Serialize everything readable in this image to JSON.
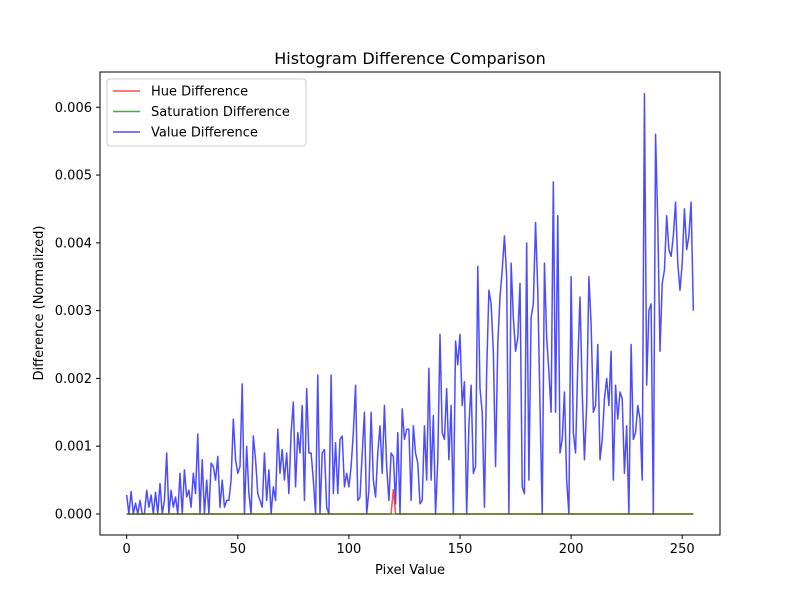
{
  "chart_data": {
    "type": "line",
    "title": "Histogram Difference Comparison",
    "xlabel": "Pixel Value",
    "ylabel": "Difference (Normalized)",
    "xlim": [
      -12,
      267
    ],
    "ylim": [
      -0.00031,
      0.00652
    ],
    "xticks": [
      0,
      50,
      100,
      150,
      200,
      250
    ],
    "xtick_labels": [
      "0",
      "50",
      "100",
      "150",
      "200",
      "250"
    ],
    "yticks": [
      0,
      0.001,
      0.002,
      0.003,
      0.004,
      0.005,
      0.006
    ],
    "ytick_labels": [
      "0.000",
      "0.001",
      "0.002",
      "0.003",
      "0.004",
      "0.005",
      "0.006"
    ],
    "grid": false,
    "legend_position": "top-left",
    "series": [
      {
        "name": "Hue Difference",
        "color": "#ff0000",
        "points": [
          [
            0,
            0
          ],
          [
            119,
            0
          ],
          [
            120,
            0.00036
          ],
          [
            121,
            0
          ],
          [
            255,
            0
          ]
        ]
      },
      {
        "name": "Saturation Difference",
        "color": "#008000",
        "points": [
          [
            0,
            0
          ],
          [
            255,
            0
          ]
        ]
      },
      {
        "name": "Value Difference",
        "color": "#0000ff",
        "points": [
          [
            0,
            0.00028
          ],
          [
            1,
            0.0
          ],
          [
            2,
            0.00033
          ],
          [
            3,
            0.0
          ],
          [
            4,
            0.00016
          ],
          [
            5,
            0.0
          ],
          [
            6,
            0.0002
          ],
          [
            7,
            0.0
          ],
          [
            8,
            0.0
          ],
          [
            9,
            0.00035
          ],
          [
            10,
            0.0001
          ],
          [
            11,
            0.00028
          ],
          [
            12,
            0.0
          ],
          [
            13,
            0.00032
          ],
          [
            14,
            0.0
          ],
          [
            15,
            0.00045
          ],
          [
            16,
            0.0
          ],
          [
            17,
            0.0002
          ],
          [
            18,
            0.0009
          ],
          [
            19,
            0.0
          ],
          [
            20,
            0.00035
          ],
          [
            21,
            0.0001
          ],
          [
            22,
            0.00025
          ],
          [
            23,
            0.0
          ],
          [
            24,
            0.0006
          ],
          [
            25,
            0.0
          ],
          [
            26,
            0.00065
          ],
          [
            27,
            0.00025
          ],
          [
            28,
            0.00035
          ],
          [
            29,
            0.0001
          ],
          [
            30,
            0.0006
          ],
          [
            31,
            0.0003
          ],
          [
            32,
            0.00118
          ],
          [
            33,
            0.0
          ],
          [
            34,
            0.0008
          ],
          [
            35,
            0.0
          ],
          [
            36,
            0.0005
          ],
          [
            37,
            0.0
          ],
          [
            38,
            0.00075
          ],
          [
            39,
            0.0007
          ],
          [
            40,
            0.0005
          ],
          [
            41,
            0.00085
          ],
          [
            42,
            0.0001
          ],
          [
            43,
            0.0005
          ],
          [
            44,
            0.0001
          ],
          [
            45,
            0.0002
          ],
          [
            46,
            0.0002
          ],
          [
            47,
            0.0005
          ],
          [
            48,
            0.0014
          ],
          [
            49,
            0.0008
          ],
          [
            50,
            0.0006
          ],
          [
            51,
            0.0007
          ],
          [
            52,
            0.00192
          ],
          [
            53,
            0.0
          ],
          [
            54,
            0.001
          ],
          [
            55,
            0.0003
          ],
          [
            56,
            0.0
          ],
          [
            57,
            0.00115
          ],
          [
            58,
            0.0008
          ],
          [
            59,
            0.0003
          ],
          [
            60,
            0.0002
          ],
          [
            61,
            0.0001
          ],
          [
            62,
            0.0009
          ],
          [
            63,
            0.0002
          ],
          [
            64,
            0.00065
          ],
          [
            65,
            0.0
          ],
          [
            66,
            0.0004
          ],
          [
            67,
            0.0002
          ],
          [
            68,
            0.00125
          ],
          [
            69,
            0.0006
          ],
          [
            70,
            0.00095
          ],
          [
            71,
            0.0005
          ],
          [
            72,
            0.0009
          ],
          [
            73,
            0.0003
          ],
          [
            74,
            0.0012
          ],
          [
            75,
            0.00165
          ],
          [
            76,
            0.0004
          ],
          [
            77,
            0.0012
          ],
          [
            78,
            0.0009
          ],
          [
            79,
            0.0016
          ],
          [
            80,
            0.0002
          ],
          [
            81,
            0.00185
          ],
          [
            82,
            0.0009
          ],
          [
            83,
            0.0009
          ],
          [
            84,
            0.0005
          ],
          [
            85,
            0.0
          ],
          [
            86,
            0.00205
          ],
          [
            87,
            0.0
          ],
          [
            88,
            0.0009
          ],
          [
            89,
            0.00095
          ],
          [
            90,
            0.0001
          ],
          [
            91,
            0.0
          ],
          [
            92,
            0.00205
          ],
          [
            93,
            0.0003
          ],
          [
            94,
            0.00105
          ],
          [
            95,
            0.0003
          ],
          [
            96,
            0.0011
          ],
          [
            97,
            0.00115
          ],
          [
            98,
            0.0004
          ],
          [
            99,
            0.0006
          ],
          [
            100,
            0.0004
          ],
          [
            101,
            0.0007
          ],
          [
            102,
            0.0012
          ],
          [
            103,
            0.0019
          ],
          [
            104,
            0.0002
          ],
          [
            105,
            0.00025
          ],
          [
            106,
            0.0009
          ],
          [
            107,
            0.0015
          ],
          [
            108,
            0.0
          ],
          [
            109,
            0.00035
          ],
          [
            110,
            0.0015
          ],
          [
            111,
            0.0005
          ],
          [
            112,
            0.00025
          ],
          [
            113,
            0.0009
          ],
          [
            114,
            0.0013
          ],
          [
            115,
            0.0006
          ],
          [
            116,
            0.0016
          ],
          [
            117,
            0.0007
          ],
          [
            118,
            0.0002
          ],
          [
            119,
            0.0009
          ],
          [
            120,
            0.00085
          ],
          [
            121,
            0.00015
          ],
          [
            122,
            0.0012
          ],
          [
            123,
            0.0
          ],
          [
            124,
            0.00155
          ],
          [
            125,
            0.0011
          ],
          [
            126,
            0.00125
          ],
          [
            127,
            0.00125
          ],
          [
            128,
            0.0002
          ],
          [
            129,
            0.0013
          ],
          [
            130,
            0.0009
          ],
          [
            131,
            0.00075
          ],
          [
            132,
            0.00015
          ],
          [
            133,
            0.0002
          ],
          [
            134,
            0.0013
          ],
          [
            135,
            0.0005
          ],
          [
            136,
            0.00215
          ],
          [
            137,
            0.0005
          ],
          [
            138,
            0.00145
          ],
          [
            139,
            0.0
          ],
          [
            140,
            0.0008
          ],
          [
            141,
            0.00265
          ],
          [
            142,
            0.0012
          ],
          [
            143,
            0.0011
          ],
          [
            144,
            0.00185
          ],
          [
            145,
            0.0008
          ],
          [
            146,
            0.0016
          ],
          [
            147,
            0.0
          ],
          [
            148,
            0.00255
          ],
          [
            149,
            0.0022
          ],
          [
            150,
            0.00265
          ],
          [
            151,
            0.0016
          ],
          [
            152,
            0.00195
          ],
          [
            153,
            0.0
          ],
          [
            154,
            0.0013
          ],
          [
            155,
            0.0019
          ],
          [
            156,
            0.0006
          ],
          [
            157,
            0.0007
          ],
          [
            158,
            0.00365
          ],
          [
            159,
            0.00185
          ],
          [
            160,
            0.0015
          ],
          [
            161,
            0.0001
          ],
          [
            162,
            0.0021
          ],
          [
            163,
            0.0033
          ],
          [
            164,
            0.0031
          ],
          [
            165,
            0.0024
          ],
          [
            166,
            0.0007
          ],
          [
            167,
            0.0025
          ],
          [
            168,
            0.0032
          ],
          [
            169,
            0.0036
          ],
          [
            170,
            0.0041
          ],
          [
            171,
            0.0035
          ],
          [
            172,
            0.0
          ],
          [
            173,
            0.0037
          ],
          [
            174,
            0.0029
          ],
          [
            175,
            0.0024
          ],
          [
            176,
            0.0026
          ],
          [
            177,
            0.0034
          ],
          [
            178,
            0.0004
          ],
          [
            179,
            0.0003
          ],
          [
            180,
            0.004
          ],
          [
            181,
            0.0005
          ],
          [
            182,
            0.0029
          ],
          [
            183,
            0.0031
          ],
          [
            184,
            0.0043
          ],
          [
            185,
            0.0033
          ],
          [
            186,
            0.0016
          ],
          [
            187,
            0.0
          ],
          [
            188,
            0.0037
          ],
          [
            189,
            0.0026
          ],
          [
            190,
            0.0021
          ],
          [
            191,
            0.0015
          ],
          [
            192,
            0.0049
          ],
          [
            193,
            0.0015
          ],
          [
            194,
            0.0044
          ],
          [
            195,
            0.0009
          ],
          [
            196,
            0.0011
          ],
          [
            197,
            0.0018
          ],
          [
            198,
            0.0005
          ],
          [
            199,
            0.0
          ],
          [
            200,
            0.0035
          ],
          [
            201,
            0.0012
          ],
          [
            202,
            0.0009
          ],
          [
            203,
            0.0022
          ],
          [
            204,
            0.0032
          ],
          [
            205,
            0.0018
          ],
          [
            206,
            0.0008
          ],
          [
            207,
            0.0016
          ],
          [
            208,
            0.0035
          ],
          [
            209,
            0.0028
          ],
          [
            210,
            0.0015
          ],
          [
            211,
            0.0016
          ],
          [
            212,
            0.0025
          ],
          [
            213,
            0.0008
          ],
          [
            214,
            0.0011
          ],
          [
            215,
            0.0017
          ],
          [
            216,
            0.002
          ],
          [
            217,
            0.0016
          ],
          [
            218,
            0.0024
          ],
          [
            219,
            0.0005
          ],
          [
            220,
            0.0019
          ],
          [
            221,
            0.0014
          ],
          [
            222,
            0.0018
          ],
          [
            223,
            0.0017
          ],
          [
            224,
            0.0006
          ],
          [
            225,
            0.0013
          ],
          [
            226,
            0.0
          ],
          [
            227,
            0.0025
          ],
          [
            228,
            0.0011
          ],
          [
            229,
            0.0012
          ],
          [
            230,
            0.0016
          ],
          [
            231,
            0.0014
          ],
          [
            232,
            0.0005
          ],
          [
            233,
            0.0062
          ],
          [
            234,
            0.0019
          ],
          [
            235,
            0.003
          ],
          [
            236,
            0.0031
          ],
          [
            237,
            0.0
          ],
          [
            238,
            0.0056
          ],
          [
            239,
            0.0043
          ],
          [
            240,
            0.0024
          ],
          [
            241,
            0.0034
          ],
          [
            242,
            0.0036
          ],
          [
            243,
            0.0044
          ],
          [
            244,
            0.0039
          ],
          [
            245,
            0.0038
          ],
          [
            246,
            0.0041
          ],
          [
            247,
            0.0046
          ],
          [
            248,
            0.0037
          ],
          [
            249,
            0.0033
          ],
          [
            250,
            0.0037
          ],
          [
            251,
            0.0045
          ],
          [
            252,
            0.0039
          ],
          [
            253,
            0.0041
          ],
          [
            254,
            0.0046
          ],
          [
            255,
            0.003
          ]
        ]
      }
    ]
  }
}
